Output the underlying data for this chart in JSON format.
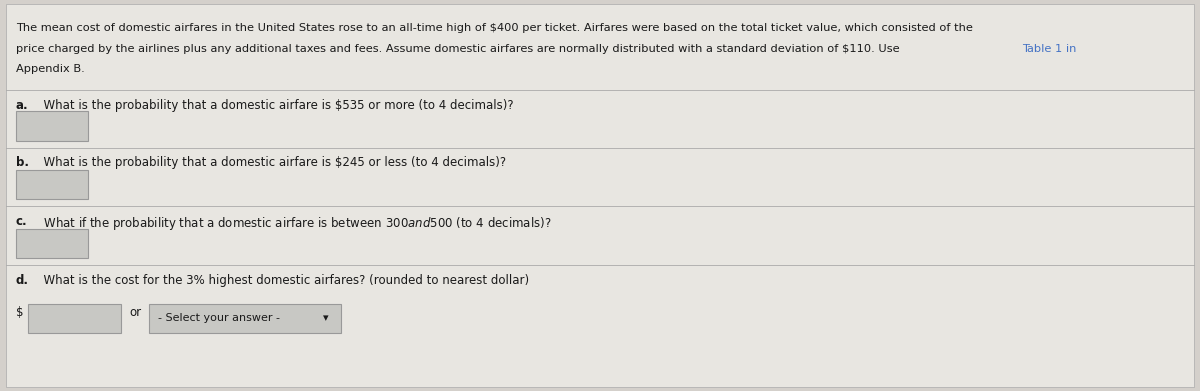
{
  "background_color": "#d4d0cb",
  "panel_color": "#e8e6e1",
  "text_color": "#1a1a1a",
  "link_color": "#4472c4",
  "input_box_color": "#c8c8c4",
  "input_box_border": "#999999",
  "line1": "The mean cost of domestic airfares in the United States rose to an all-time high of $400 per ticket. Airfares were based on the total ticket value, which consisted of the",
  "line2_part1": "price charged by the airlines plus any additional taxes and fees. Assume domestic airfares are normally distributed with a standard deviation of $110. Use ",
  "line2_link": "Table 1 in",
  "line3": "Appendix B.",
  "q_a_bold": "a.",
  "q_a_rest": "  What is the probability that a domestic airfare is $535 or more (to 4 decimals)?",
  "q_b_bold": "b.",
  "q_b_rest": "  What is the probability that a domestic airfare is $245 or less (to 4 decimals)?",
  "q_c_bold": "c.",
  "q_c_rest": "  What if the probability that a domestic airfare is between $300 and $500 (to 4 decimals)?",
  "q_d_bold": "d.",
  "q_d_rest": "  What is the cost for the 3% highest domestic airfares? (rounded to nearest dollar)",
  "dollar_label": "$",
  "or_label": "or",
  "dropdown_label": "- Select your answer -",
  "separator_color": "#aaaaaa",
  "fontsize_para": 8.2,
  "fontsize_q": 8.5
}
